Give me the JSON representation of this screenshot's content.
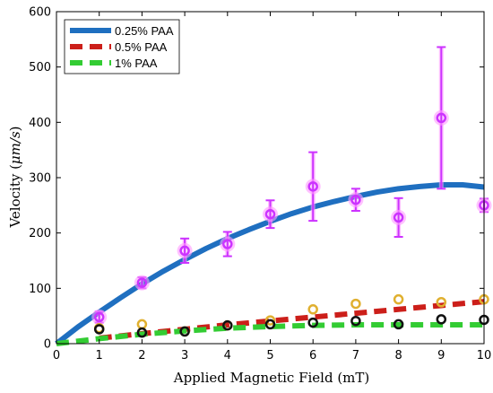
{
  "chart_data": {
    "type": "scatter",
    "xlabel": "Applied Magnetic Field (mT)",
    "ylabel_prefix": "Velocity (",
    "ylabel_unit": "μm/s",
    "ylabel_suffix": ")",
    "xlim": [
      0,
      10
    ],
    "ylim": [
      0,
      600
    ],
    "xticks": [
      "0",
      "1",
      "2",
      "3",
      "4",
      "5",
      "6",
      "7",
      "8",
      "9",
      "10"
    ],
    "yticks": [
      "0",
      "100",
      "200",
      "300",
      "400",
      "500",
      "600"
    ],
    "grid": false,
    "legend_position": "top-left",
    "fit_lines": [
      {
        "name": "0.25% PAA",
        "color": "#1f6fc0",
        "style": "solid",
        "x": [
          0,
          0.5,
          1,
          1.5,
          2,
          2.5,
          3,
          3.5,
          4,
          4.5,
          5,
          5.5,
          6,
          6.5,
          7,
          7.5,
          8,
          8.5,
          9,
          9.5,
          10
        ],
        "y": [
          0,
          30,
          57,
          83,
          108,
          131,
          152,
          172,
          190,
          206,
          221,
          235,
          247,
          257,
          266,
          274,
          280,
          284,
          287,
          287,
          283
        ]
      },
      {
        "name": "0.5% PAA",
        "color": "#cc1f1a",
        "style": "dashed",
        "x": [
          1,
          2,
          3,
          4,
          5,
          6,
          7,
          8,
          9,
          10
        ],
        "y": [
          10,
          18,
          26,
          34,
          41,
          48,
          55,
          62,
          69,
          76
        ]
      },
      {
        "name": "1% PAA",
        "color": "#33cc33",
        "style": "dashed",
        "x": [
          0,
          1,
          2,
          3,
          4,
          5,
          6,
          7,
          8,
          9,
          10
        ],
        "y": [
          0,
          9,
          17,
          23,
          28,
          31,
          33,
          34,
          34,
          34,
          34
        ]
      }
    ],
    "data_series": [
      {
        "color": "#cc33ff",
        "shadow": "#ff99ff",
        "x": [
          1,
          2,
          3,
          4,
          5,
          6,
          7,
          8,
          9,
          10
        ],
        "y": [
          48,
          110,
          168,
          180,
          234,
          284,
          260,
          228,
          408,
          250
        ],
        "err": [
          10,
          10,
          22,
          22,
          25,
          62,
          20,
          35,
          128,
          12
        ]
      },
      {
        "color": "#e0b030",
        "x": [
          1,
          2,
          3,
          4,
          5,
          6,
          7,
          8,
          9,
          10
        ],
        "y": [
          28,
          35,
          22,
          33,
          42,
          62,
          72,
          80,
          75,
          80
        ],
        "err": [
          0,
          0,
          0,
          0,
          0,
          0,
          0,
          0,
          0,
          0
        ]
      },
      {
        "color": "#111111",
        "x": [
          1,
          2,
          3,
          4,
          5,
          6,
          7,
          8,
          9,
          10
        ],
        "y": [
          26,
          20,
          22,
          33,
          35,
          38,
          41,
          35,
          44,
          43
        ],
        "err": [
          0,
          0,
          0,
          0,
          0,
          0,
          0,
          0,
          0,
          0
        ]
      }
    ]
  }
}
